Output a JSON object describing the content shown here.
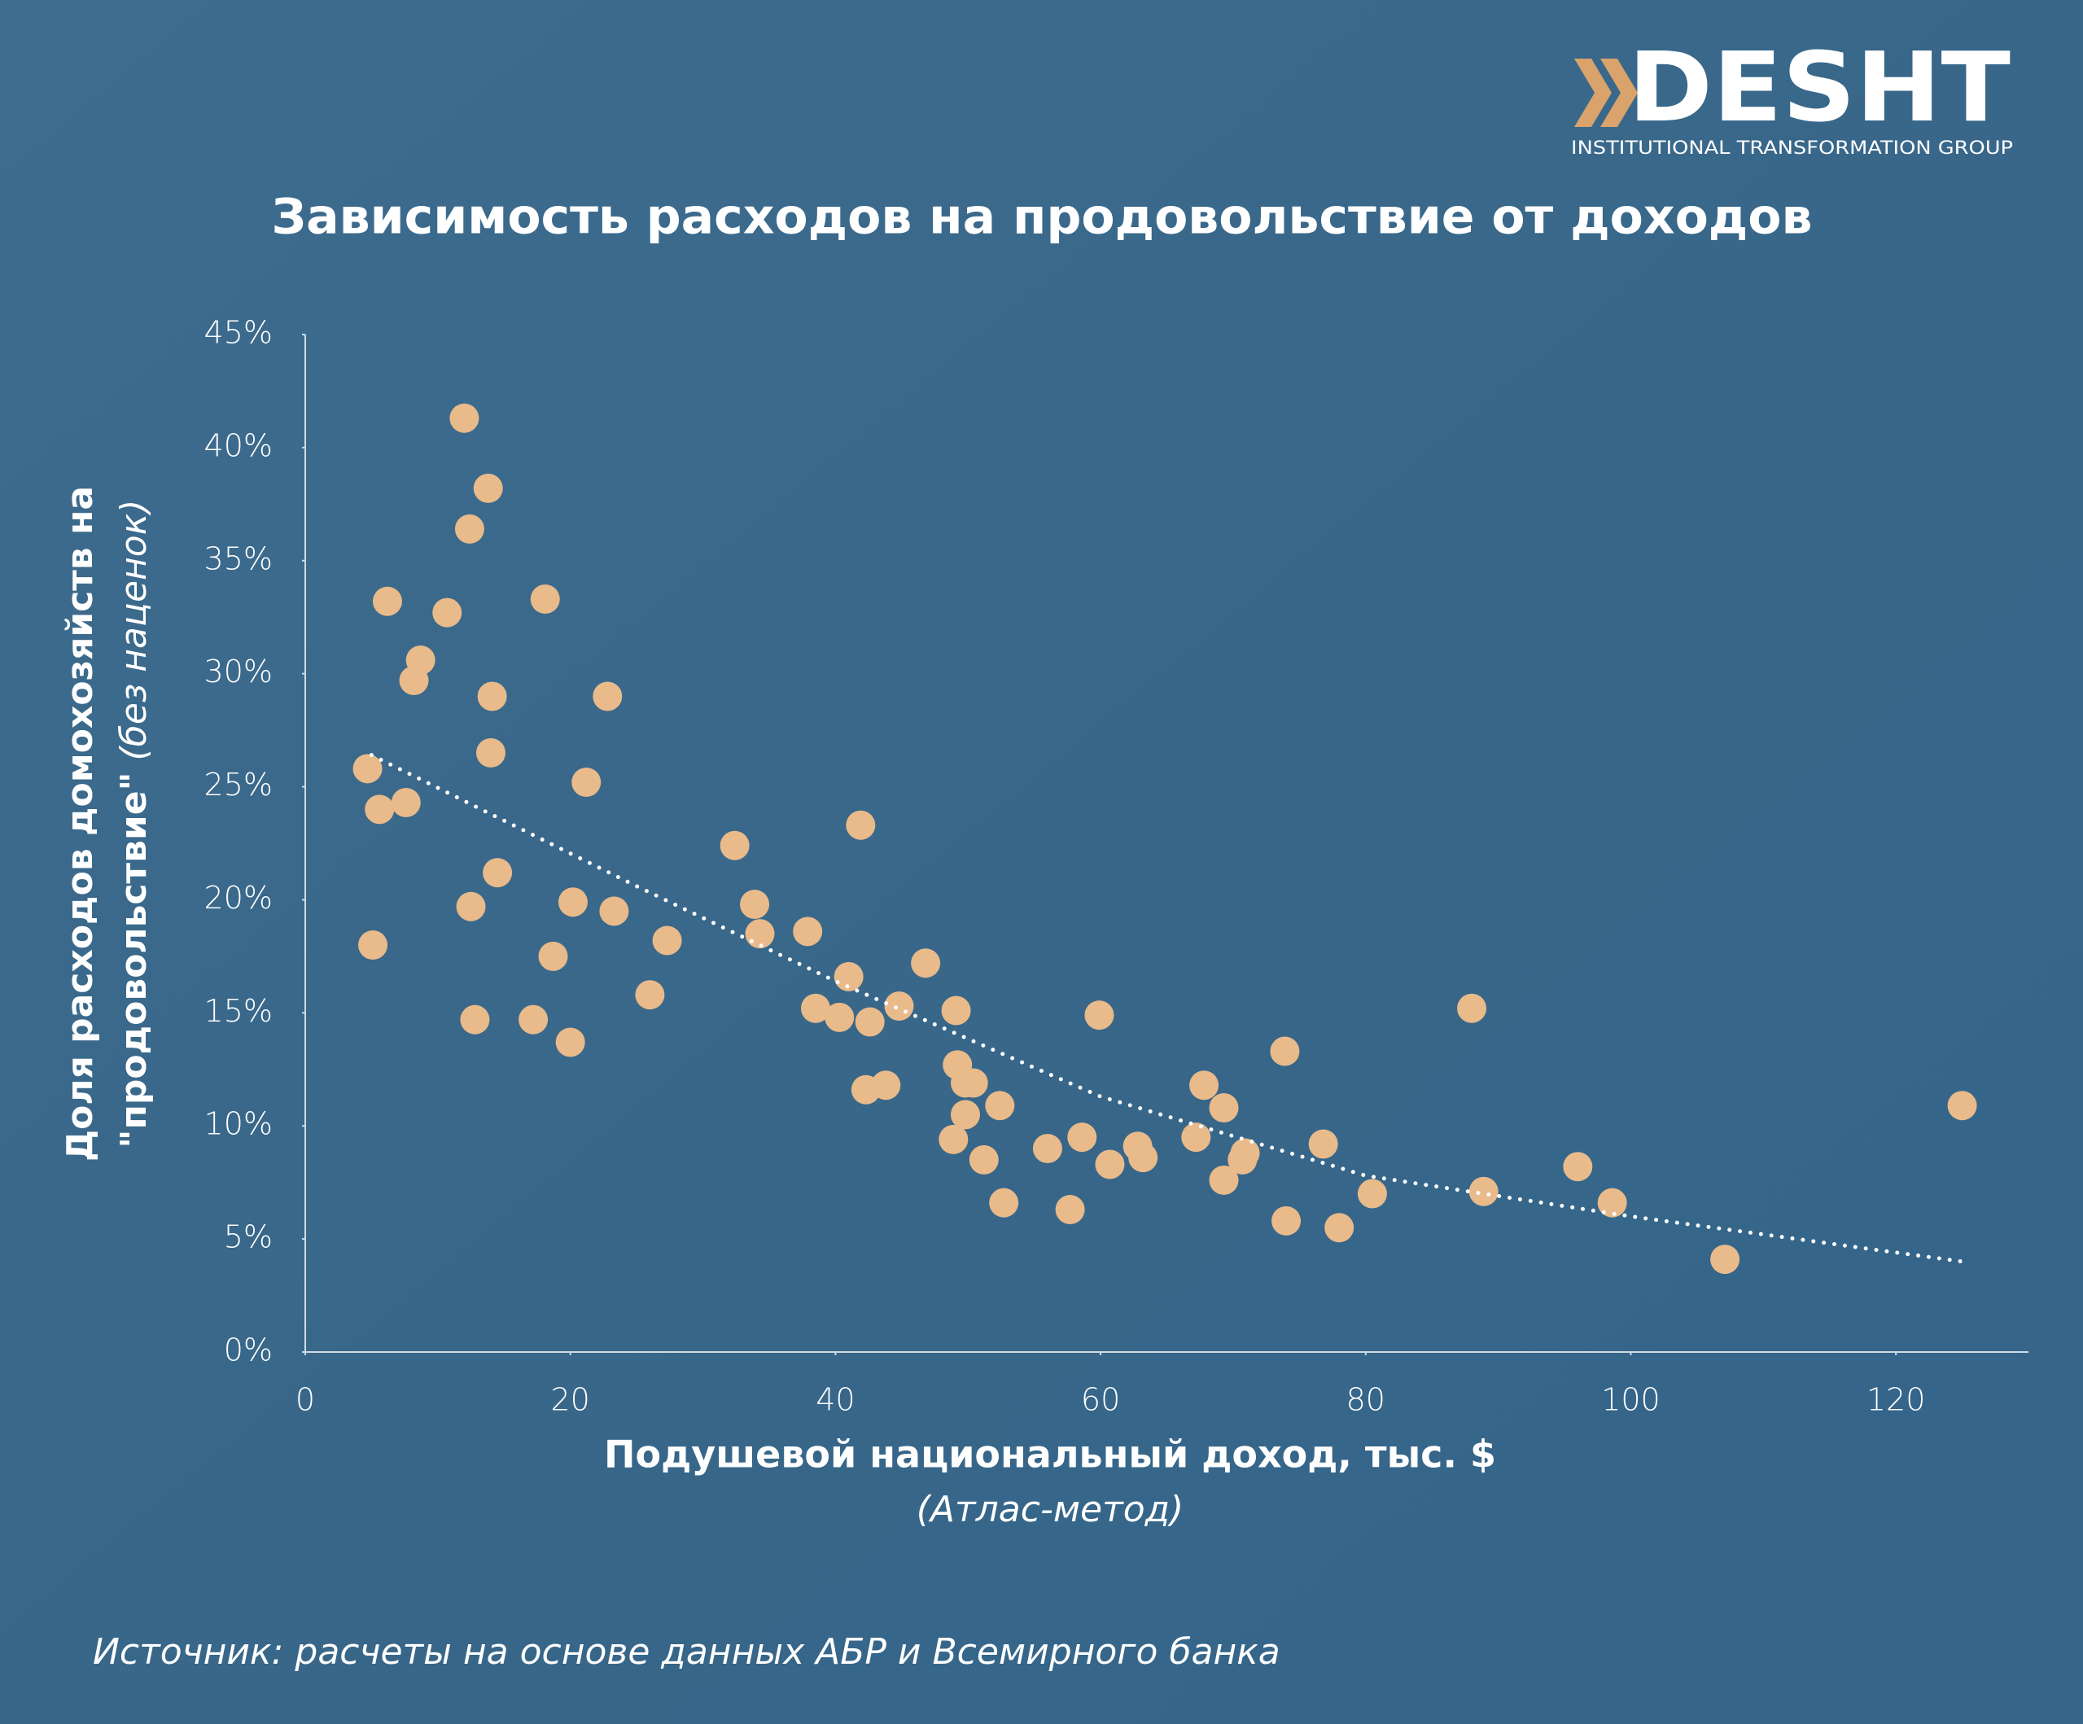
{
  "logo": {
    "name": "DESHT",
    "subtitle": "INSTITUTIONAL TRANSFORMATION GROUP"
  },
  "chart_data": {
    "type": "scatter",
    "title": "Зависимость расходов на продовольствие от доходов",
    "x_label": "Подушевой национальный доход, тыс. $",
    "x_label_note": "(Атлас-метод)",
    "y_label": "Доля расходов домохозяйств на",
    "y_label_bold": "\"продовольствие\"",
    "y_label_note": "(без наценок)",
    "source": "Источник: расчеты на основе данных АБР и Всемирного банка",
    "xlim": [
      0,
      130
    ],
    "xticks": [
      0,
      20,
      40,
      60,
      80,
      100,
      120
    ],
    "ylim": [
      0,
      45
    ],
    "yticks": [
      {
        "value": 0,
        "label": "0%"
      },
      {
        "value": 5,
        "label": "5%"
      },
      {
        "value": 10,
        "label": "10%"
      },
      {
        "value": 15,
        "label": "15%"
      },
      {
        "value": 20,
        "label": "20%"
      },
      {
        "value": 25,
        "label": "25%"
      },
      {
        "value": 30,
        "label": "30%"
      },
      {
        "value": 35,
        "label": "35%"
      },
      {
        "value": 40,
        "label": "40%"
      },
      {
        "value": 45,
        "label": "45%"
      }
    ],
    "series": [
      {
        "color": "#e9ba8a",
        "x": [
          12.0,
          13.8,
          12.4,
          6.2,
          10.7,
          18.1,
          8.7,
          8.2,
          14.1,
          22.8,
          14.0,
          4.7,
          21.2,
          5.6,
          7.6,
          41.9,
          32.4,
          14.5,
          12.5,
          20.2,
          23.3,
          33.9,
          34.3,
          37.9,
          27.3,
          5.1,
          18.7,
          46.8,
          41.0,
          26.0,
          44.8,
          38.5,
          40.3,
          42.6,
          49.1,
          12.8,
          17.2,
          20.0,
          59.9,
          88.0,
          73.9,
          49.2,
          49.8,
          50.4,
          42.3,
          43.8,
          67.8,
          52.4,
          49.8,
          69.3,
          125.0,
          48.9,
          56.0,
          58.6,
          62.8,
          63.2,
          67.2,
          76.8,
          51.2,
          60.7,
          70.9,
          70.7,
          96.0,
          69.3,
          80.5,
          88.9,
          52.7,
          57.7,
          98.6,
          74.0,
          78.0,
          107.1
        ],
        "values": [
          41.3,
          38.2,
          36.4,
          33.2,
          32.7,
          33.3,
          30.6,
          29.7,
          29.0,
          29.0,
          26.5,
          25.8,
          25.2,
          24.0,
          24.3,
          23.3,
          22.4,
          21.2,
          19.7,
          19.9,
          19.5,
          19.8,
          18.5,
          18.6,
          18.2,
          18.0,
          17.5,
          17.2,
          16.6,
          15.8,
          15.3,
          15.2,
          14.8,
          14.6,
          15.1,
          14.7,
          14.7,
          13.7,
          14.9,
          15.2,
          13.3,
          12.7,
          11.9,
          11.9,
          11.6,
          11.8,
          11.8,
          10.9,
          10.5,
          10.8,
          10.9,
          9.4,
          9.0,
          9.5,
          9.1,
          8.6,
          9.5,
          9.2,
          8.5,
          8.3,
          8.8,
          8.5,
          8.2,
          7.6,
          7.0,
          7.1,
          6.6,
          6.3,
          6.6,
          5.8,
          5.5,
          4.1
        ]
      }
    ],
    "trendline": {
      "color": "#ffffff",
      "x": [
        5,
        15,
        25,
        40,
        60,
        80,
        100,
        125
      ],
      "values": [
        26.4,
        23.5,
        20.6,
        16.4,
        11.3,
        7.8,
        6.0,
        4.0
      ]
    }
  }
}
